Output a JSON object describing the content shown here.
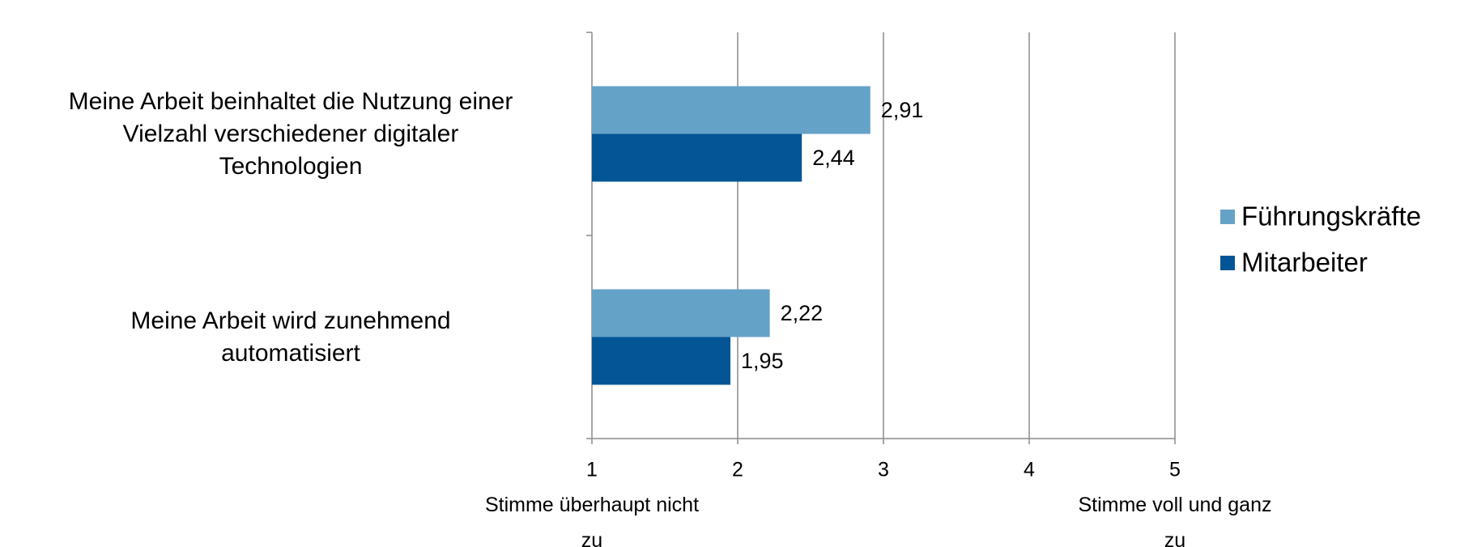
{
  "chart_data": {
    "type": "hbar",
    "categories": [
      "Meine Arbeit beinhaltet die Nutzung einer\nVielzahl verschiedener digitaler\nTechnologien",
      "Meine Arbeit wird zunehmend\nautomatisiert"
    ],
    "series": [
      {
        "name": "Führungskräfte",
        "color": "#65a2c8",
        "values": [
          2.91,
          2.22
        ],
        "value_labels": [
          "2,91",
          "2,22"
        ]
      },
      {
        "name": "Mitarbeiter",
        "color": "#035596",
        "values": [
          2.44,
          1.95
        ],
        "value_labels": [
          "2,44",
          "1,95"
        ]
      }
    ],
    "xlim": [
      1,
      5
    ],
    "xticks": [
      1,
      2,
      3,
      4,
      5
    ],
    "grid": true,
    "legend": "right",
    "annotations": [
      {
        "text": "Stimme überhaupt nicht\nzu",
        "x": 1
      },
      {
        "text": "Stimme voll und ganz\nzu",
        "x": 5
      }
    ]
  }
}
